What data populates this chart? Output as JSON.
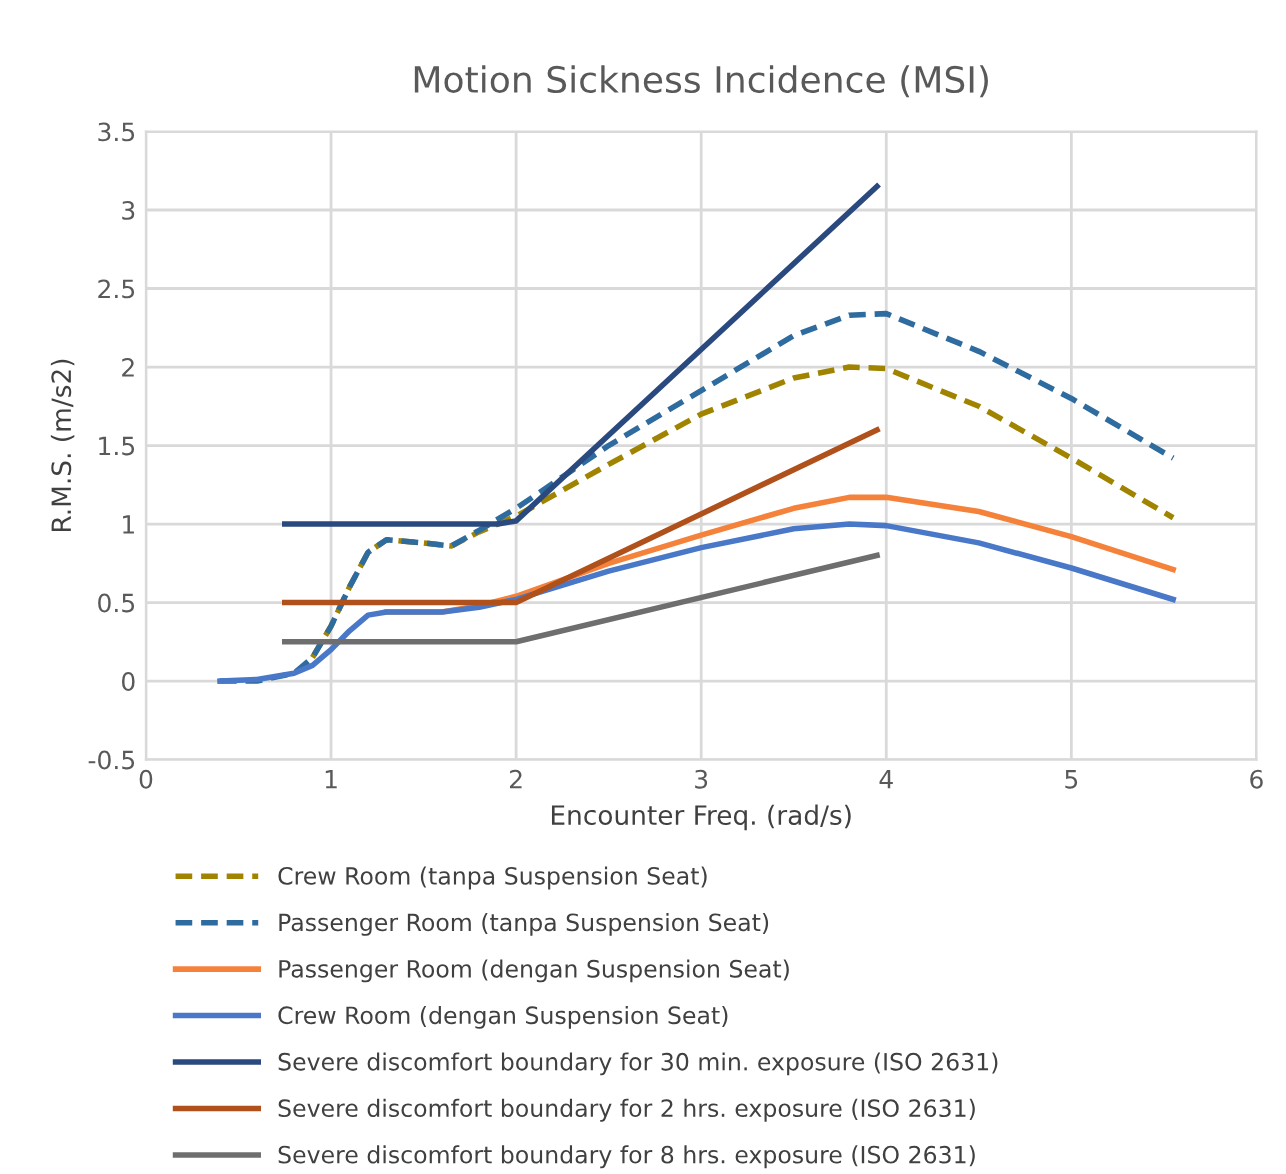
{
  "chart_data": {
    "type": "line",
    "title": "Motion Sickness Incidence (MSI)",
    "xlabel": "Encounter Freq. (rad/s)",
    "ylabel": "R.M.S. (m/s2)",
    "xlim": [
      0,
      6
    ],
    "xticks": [
      0,
      1,
      2,
      3,
      4,
      5,
      6
    ],
    "ylim": [
      -0.5,
      3.5
    ],
    "yticks": [
      -0.5,
      0,
      0.5,
      1,
      1.5,
      2,
      2.5,
      3,
      3.5
    ],
    "grid": true,
    "legend": "bottom",
    "marker": "none",
    "series": [
      {
        "name": "Crew Room (tanpa Suspension Seat)",
        "color": "#a08400",
        "line_style": "dashed",
        "x": [
          0.9,
          1.0,
          1.1,
          1.2,
          1.3,
          1.5,
          1.65,
          1.8,
          2.0,
          2.5,
          3.0,
          3.5,
          3.8,
          4.0,
          4.5,
          5.0,
          5.55
        ],
        "values": [
          0.15,
          0.35,
          0.6,
          0.82,
          0.9,
          0.88,
          0.86,
          0.95,
          1.05,
          1.38,
          1.7,
          1.93,
          2.0,
          1.99,
          1.75,
          1.42,
          1.04
        ]
      },
      {
        "name": "Passenger Room (tanpa Suspension Seat)",
        "color": "#2e6b9e",
        "line_style": "dashed",
        "x": [
          0.4,
          0.6,
          0.8,
          0.9,
          1.0,
          1.1,
          1.2,
          1.3,
          1.5,
          1.65,
          1.8,
          2.0,
          2.5,
          3.0,
          3.5,
          3.8,
          4.0,
          4.5,
          5.0,
          5.55
        ],
        "values": [
          0,
          0,
          0.05,
          0.15,
          0.35,
          0.6,
          0.82,
          0.9,
          0.88,
          0.86,
          0.96,
          1.1,
          1.5,
          1.85,
          2.2,
          2.33,
          2.34,
          2.1,
          1.8,
          1.42
        ]
      },
      {
        "name": "Passenger Room (dengan Suspension Seat)",
        "color": "#f4823b",
        "line_style": "solid",
        "x": [
          1.3,
          1.6,
          1.8,
          2.0,
          2.5,
          3.0,
          3.5,
          3.8,
          4.0,
          4.5,
          5.0,
          5.55
        ],
        "values": [
          0.44,
          0.44,
          0.48,
          0.54,
          0.75,
          0.93,
          1.1,
          1.17,
          1.17,
          1.08,
          0.92,
          0.71
        ]
      },
      {
        "name": "Crew Room (dengan Suspension Seat)",
        "color": "#4a78c8",
        "line_style": "solid",
        "x": [
          0.4,
          0.6,
          0.8,
          0.9,
          1.0,
          1.1,
          1.2,
          1.3,
          1.6,
          1.8,
          2.0,
          2.5,
          3.0,
          3.5,
          3.8,
          4.0,
          4.5,
          5.0,
          5.55
        ],
        "values": [
          0,
          0.01,
          0.05,
          0.1,
          0.2,
          0.32,
          0.42,
          0.44,
          0.44,
          0.47,
          0.52,
          0.7,
          0.85,
          0.97,
          1.0,
          0.99,
          0.88,
          0.72,
          0.52
        ]
      },
      {
        "name": "Severe discomfort boundary for 30 min. exposure (ISO 2631)",
        "color": "#2a4a7f",
        "line_style": "solid",
        "x": [
          0.75,
          1.9,
          2.0,
          3.95
        ],
        "values": [
          1,
          1,
          1.02,
          3.15
        ]
      },
      {
        "name": "Severe discomfort boundary for 2 hrs. exposure (ISO 2631)",
        "color": "#b0501a",
        "line_style": "solid",
        "x": [
          0.75,
          2.0,
          3.95
        ],
        "values": [
          0.5,
          0.5,
          1.6
        ]
      },
      {
        "name": "Severe discomfort boundary for 8 hrs. exposure (ISO 2631)",
        "color": "#6e6e6e",
        "line_style": "solid",
        "x": [
          0.75,
          2.0,
          3.95
        ],
        "values": [
          0.25,
          0.25,
          0.8
        ]
      }
    ]
  }
}
